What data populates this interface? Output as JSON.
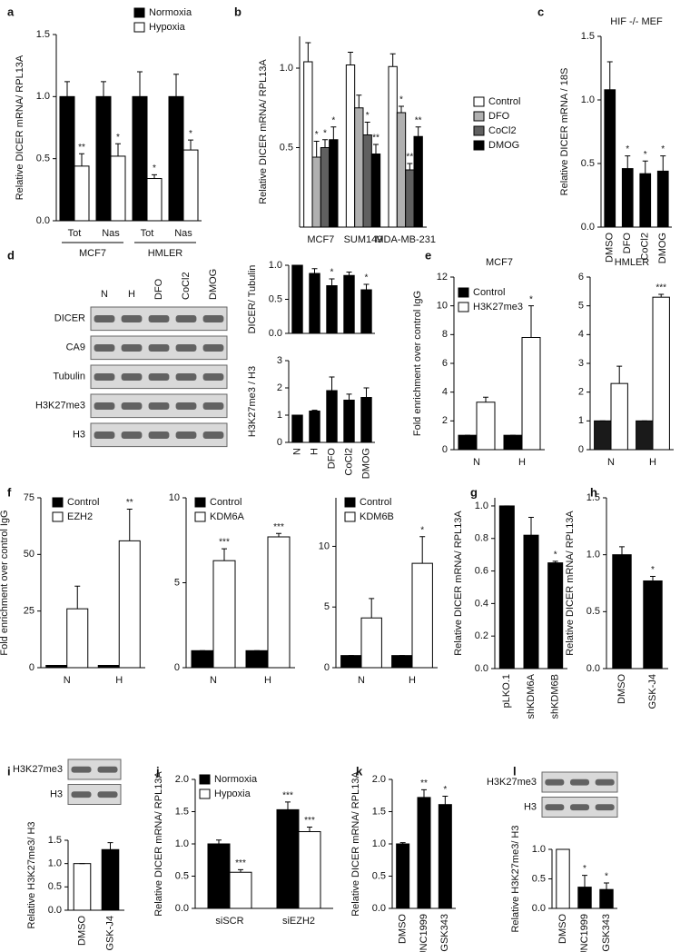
{
  "chart_data": [
    {
      "type": "bar",
      "panel": "a",
      "ylabel": "Relative DICER mRNA/ RPL13A",
      "categories": [
        "Tot",
        "Nas",
        "Tot",
        "Nas"
      ],
      "groups": [
        "MCF7",
        "HMLER"
      ],
      "series": [
        {
          "name": "Normoxia",
          "color": "#000000",
          "values": [
            1.0,
            1.0,
            1.0,
            1.0
          ],
          "errors": [
            0.12,
            0.12,
            0.2,
            0.18
          ]
        },
        {
          "name": "Hypoxia",
          "color": "#ffffff",
          "values": [
            0.44,
            0.52,
            0.34,
            0.57
          ],
          "errors": [
            0.1,
            0.1,
            0.03,
            0.08
          ],
          "stars": [
            "**",
            "*",
            "*",
            "*"
          ]
        }
      ],
      "ylim": [
        0,
        1.5
      ],
      "yticks": [
        {
          "value": 0,
          "label": "0.0"
        },
        0.5,
        {
          "value": 1,
          "label": "1.0"
        },
        1.5
      ],
      "legend": "upper right"
    },
    {
      "type": "bar",
      "panel": "b",
      "ylabel": "Relative DICER mRNA/ RPL13A",
      "categories": [
        "MCF7",
        "SUM149",
        "MDA-MB-231"
      ],
      "series": [
        {
          "name": "Control",
          "color": "#ffffff",
          "values": [
            1.04,
            1.02,
            1.01
          ],
          "errors": [
            0.12,
            0.08,
            0.08
          ]
        },
        {
          "name": "DFO",
          "color": "#b0b0b0",
          "values": [
            0.44,
            0.75,
            0.72
          ],
          "errors": [
            0.1,
            0.08,
            0.04
          ],
          "stars": [
            "*",
            null,
            "*"
          ]
        },
        {
          "name": "CoCl2",
          "color": "#606060",
          "values": [
            0.5,
            0.58,
            0.36
          ],
          "errors": [
            0.05,
            0.08,
            0.04
          ],
          "stars": [
            "*",
            "*",
            "**"
          ]
        },
        {
          "name": "DMOG",
          "color": "#000000",
          "values": [
            0.55,
            0.46,
            0.57
          ],
          "errors": [
            0.08,
            0.06,
            0.06
          ],
          "stars": [
            "*",
            "**",
            "**"
          ]
        }
      ],
      "ylim": [
        0,
        1.2
      ],
      "yticks": [
        0.5,
        {
          "value": 1,
          "label": "1.0"
        }
      ],
      "legend": "right"
    },
    {
      "type": "bar",
      "panel": "c",
      "title": "HIF -/- MEF",
      "ylabel": "Relative DICER mRNA / 18S",
      "categories": [
        "DMSO",
        "DFO",
        "CoCl2",
        "DMOG"
      ],
      "rotate_labels": true,
      "series": [
        {
          "color": "#000000",
          "values": [
            1.08,
            0.46,
            0.42,
            0.44
          ],
          "errors": [
            0.22,
            0.1,
            0.1,
            0.12
          ],
          "stars": [
            null,
            "*",
            "*",
            "*"
          ]
        }
      ],
      "ylim": [
        0,
        1.5
      ],
      "yticks": [
        {
          "value": 0,
          "label": "0.0"
        },
        0.5,
        {
          "value": 1,
          "label": "1.0"
        },
        1.5
      ]
    },
    {
      "type": "blot",
      "panel": "d",
      "columns": [
        "N",
        "H",
        "DFO",
        "CoCl2",
        "DMOG"
      ],
      "rows": [
        "DICER",
        "CA9",
        "Tubulin",
        "H3K27me3",
        "H3"
      ]
    },
    {
      "type": "bar",
      "ylabel": "DICER/ Tubulin",
      "series": [
        {
          "color": "#000000",
          "values": [
            1.0,
            0.88,
            0.7,
            0.85,
            0.64
          ],
          "errors": [
            0.0,
            0.07,
            0.1,
            0.05,
            0.08
          ],
          "stars": [
            null,
            null,
            "*",
            null,
            "*"
          ]
        }
      ],
      "ylim": [
        0,
        1.0
      ],
      "yticks": [
        {
          "value": 0,
          "label": "0.0"
        },
        0.5,
        {
          "value": 1,
          "label": "1.0"
        }
      ]
    },
    {
      "type": "bar",
      "ylabel": "H3K27me3 / H3",
      "categories": [
        "N",
        "H",
        "DFO",
        "CoCl2",
        "DMOG"
      ],
      "rotate_labels": true,
      "series": [
        {
          "color": "#000000",
          "values": [
            1.0,
            1.15,
            1.9,
            1.55,
            1.65
          ],
          "errors": [
            0.0,
            0.03,
            0.5,
            0.22,
            0.35
          ]
        }
      ],
      "ylim": [
        0,
        3
      ],
      "yticks": [
        0,
        1,
        2,
        3
      ]
    },
    {
      "type": "bar",
      "panel": "e",
      "title": "MCF7",
      "ylabel": "Fold enrichment over control IgG",
      "categories": [
        "N",
        "H"
      ],
      "series": [
        {
          "name": "Control",
          "color": "#000000",
          "values": [
            1,
            1
          ],
          "errors": [
            0,
            0
          ]
        },
        {
          "name": "H3K27me3",
          "color": "#ffffff",
          "values": [
            3.3,
            7.8
          ],
          "errors": [
            0.35,
            2.2
          ],
          "stars": [
            null,
            "*"
          ]
        }
      ],
      "ylim": [
        0,
        12
      ],
      "yticks": [
        0,
        2,
        4,
        6,
        8,
        10,
        12
      ],
      "legend": "upper left"
    },
    {
      "type": "bar",
      "title": "HMLER",
      "categories": [
        "N",
        "H"
      ],
      "series": [
        {
          "color": "#1a1a1a",
          "values": [
            1,
            1
          ],
          "errors": [
            0,
            0
          ]
        },
        {
          "color": "#ffffff",
          "values": [
            2.3,
            5.3
          ],
          "errors": [
            0.6,
            0.1
          ],
          "stars": [
            null,
            "***"
          ]
        }
      ],
      "ylim": [
        0,
        6
      ],
      "yticks": [
        0,
        1,
        2,
        3,
        4,
        5,
        6
      ]
    },
    {
      "type": "bar",
      "panel": "f",
      "ylabel": "Fold enrichment over control IgG",
      "categories": [
        "N",
        "H"
      ],
      "series": [
        {
          "name": "Control",
          "color": "#000000",
          "values": [
            1,
            1
          ],
          "errors": [
            0,
            0
          ]
        },
        {
          "name": "EZH2",
          "color": "#ffffff",
          "values": [
            26,
            56
          ],
          "errors": [
            10,
            14
          ],
          "stars": [
            null,
            "**"
          ]
        }
      ],
      "ylim": [
        0,
        75
      ],
      "yticks": [
        0,
        25,
        50,
        75
      ],
      "legend": "upper left"
    },
    {
      "type": "bar",
      "categories": [
        "N",
        "H"
      ],
      "series": [
        {
          "name": "Control",
          "color": "#000000",
          "values": [
            1,
            1
          ],
          "errors": [
            0,
            0
          ]
        },
        {
          "name": "KDM6A",
          "color": "#ffffff",
          "values": [
            6.3,
            7.7
          ],
          "errors": [
            0.7,
            0.2
          ],
          "stars": [
            "***",
            "***"
          ]
        }
      ],
      "ylim": [
        0,
        10
      ],
      "yticks": [
        0,
        5,
        10
      ],
      "legend": "upper left"
    },
    {
      "type": "bar",
      "categories": [
        "N",
        "H"
      ],
      "series": [
        {
          "name": "Control",
          "color": "#000000",
          "values": [
            1,
            1
          ],
          "errors": [
            0,
            0
          ]
        },
        {
          "name": "KDM6B",
          "color": "#ffffff",
          "values": [
            4.1,
            8.6
          ],
          "errors": [
            1.6,
            2.2
          ],
          "stars": [
            null,
            "*"
          ]
        }
      ],
      "ylim": [
        0,
        14
      ],
      "yticks": [
        0,
        5,
        10
      ],
      "legend": "upper left"
    },
    {
      "type": "bar",
      "panel": "g",
      "ylabel": "Relative DICER mRNA/  RPL13A",
      "categories": [
        "pLKO.1",
        "shKDM6A",
        "shKDM6B"
      ],
      "rotate_labels": true,
      "series": [
        {
          "color": "#000000",
          "values": [
            1.0,
            0.82,
            0.65
          ],
          "errors": [
            0.0,
            0.11,
            0.01
          ],
          "stars": [
            null,
            null,
            "*"
          ]
        }
      ],
      "ylim": [
        0,
        1.05
      ],
      "yticks": [
        {
          "value": 0,
          "label": "0.0"
        },
        0.2,
        0.4,
        0.6,
        0.8,
        {
          "value": 1,
          "label": "1.0"
        }
      ]
    },
    {
      "type": "bar",
      "panel": "h",
      "ylabel": "Relative DICER mRNA/  RPL13A",
      "categories": [
        "DMSO",
        "GSK-J4"
      ],
      "rotate_labels": true,
      "series": [
        {
          "color": "#000000",
          "values": [
            1.0,
            0.77
          ],
          "errors": [
            0.07,
            0.04
          ],
          "stars": [
            null,
            "*"
          ]
        }
      ],
      "ylim": [
        0,
        1.5
      ],
      "yticks": [
        {
          "value": 0,
          "label": "0.0"
        },
        0.5,
        {
          "value": 1,
          "label": "1.0"
        },
        1.5
      ]
    },
    {
      "type": "blot",
      "panel": "i",
      "rows": [
        "H3K27me3",
        "H3"
      ]
    },
    {
      "type": "bar",
      "ylabel": "Relative H3K27me3/ H3",
      "categories": [
        "DMSO",
        "GSK-J4"
      ],
      "rotate_labels": true,
      "series": [
        {
          "colors": [
            "#ffffff",
            "#000000"
          ],
          "values": [
            1.0,
            1.3
          ],
          "errors": [
            0.0,
            0.15
          ]
        }
      ],
      "ylim": [
        0,
        1.5
      ],
      "yticks": [
        {
          "value": 0,
          "label": "0.0"
        },
        0.5,
        {
          "value": 1,
          "label": "1.0"
        },
        1.5
      ]
    },
    {
      "type": "bar",
      "panel": "j",
      "ylabel": "Relative DICER mRNA/  RPL13A",
      "categories": [
        "siSCR",
        "siEZH2"
      ],
      "series": [
        {
          "name": "Normoxia",
          "color": "#000000",
          "values": [
            1.0,
            1.53
          ],
          "errors": [
            0.06,
            0.12
          ],
          "stars": [
            null,
            "***"
          ]
        },
        {
          "name": "Hypoxia",
          "color": "#ffffff",
          "values": [
            0.56,
            1.19
          ],
          "errors": [
            0.04,
            0.07
          ],
          "stars": [
            "***",
            "***"
          ]
        }
      ],
      "ylim": [
        0,
        2.0
      ],
      "yticks": [
        {
          "value": 0,
          "label": "0.0"
        },
        0.5,
        {
          "value": 1,
          "label": "1.0"
        },
        1.5,
        {
          "value": 2,
          "label": "2.0"
        }
      ],
      "legend": "upper left"
    },
    {
      "type": "bar",
      "panel": "k",
      "ylabel": "Relative DICER mRNA/  RPL13A",
      "categories": [
        "DMSO",
        "UNC1999",
        "GSK343"
      ],
      "rotate_labels": true,
      "series": [
        {
          "color": "#000000",
          "values": [
            1.0,
            1.72,
            1.61
          ],
          "errors": [
            0.02,
            0.12,
            0.13
          ],
          "stars": [
            null,
            "**",
            "*"
          ]
        }
      ],
      "ylim": [
        0,
        2.0
      ],
      "yticks": [
        {
          "value": 0,
          "label": "0.0"
        },
        0.5,
        {
          "value": 1,
          "label": "1.0"
        },
        1.5,
        {
          "value": 2,
          "label": "2.0"
        }
      ]
    },
    {
      "type": "blot",
      "panel": "l",
      "rows": [
        "H3K27me3",
        "H3"
      ]
    },
    {
      "type": "bar",
      "ylabel": "Relative H3K27me3/ H3",
      "categories": [
        "DMSO",
        "UNC1999",
        "GSK343"
      ],
      "rotate_labels": true,
      "series": [
        {
          "colors": [
            "#ffffff",
            "#000000",
            "#000000"
          ],
          "values": [
            1.0,
            0.36,
            0.32
          ],
          "errors": [
            0.0,
            0.2,
            0.11
          ],
          "stars": [
            null,
            "*",
            "*"
          ]
        }
      ],
      "ylim": [
        0,
        1.0
      ],
      "yticks": [
        {
          "value": 0,
          "label": "0.0"
        },
        0.5,
        {
          "value": 1,
          "label": "1.0"
        }
      ]
    }
  ]
}
